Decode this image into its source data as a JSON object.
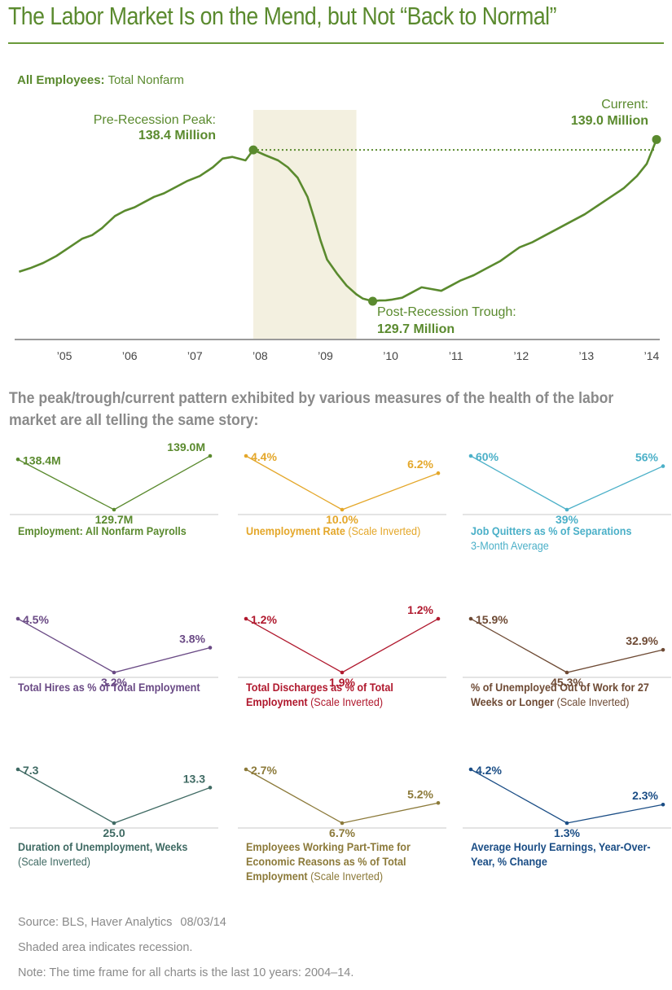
{
  "title": "The Labor Market Is on the Mend, but Not “Back to Normal”",
  "main": {
    "label_bold": "All Employees:",
    "label_rest": "Total Nonfarm",
    "peak_label": "Pre-Recession Peak:",
    "peak_value": "138.4 Million",
    "trough_label": "Post-Recession Trough:",
    "trough_value": "129.7 Million",
    "current_label": "Current:",
    "current_value": "139.0 Million"
  },
  "summary": "The peak/trough/current pattern exhibited by various measures of the health of the labor market are all telling the same story:",
  "colors": {
    "green": "#5a8a2e",
    "orange": "#e4a72a",
    "cyan": "#4bb0c8",
    "purple": "#6a4a85",
    "red": "#b0192e",
    "brown": "#6e4a34",
    "teal": "#3f6a63",
    "olive": "#8c7a3a",
    "navy": "#1a4d85",
    "recession": "#f3f0e0",
    "axis": "#9a9a9a",
    "tick_text": "#444444"
  },
  "chart_data": [
    {
      "type": "line",
      "name": "main",
      "x_ticks": [
        "’05",
        "’06",
        "’07",
        "’08",
        "’09",
        "’10",
        "’11",
        "’12",
        "’13",
        "’14"
      ],
      "x_tick_values": [
        2005,
        2006,
        2007,
        2008,
        2009,
        2010,
        2011,
        2012,
        2013,
        2014
      ],
      "xlim": [
        2004.3,
        2014.1
      ],
      "ylim": [
        127.5,
        140.7
      ],
      "recession": [
        2007.92,
        2009.5
      ],
      "x": [
        2004.33,
        2004.5,
        2004.7,
        2004.9,
        2005.1,
        2005.3,
        2005.45,
        2005.6,
        2005.8,
        2005.95,
        2006.1,
        2006.25,
        2006.4,
        2006.55,
        2006.75,
        2006.9,
        2007.1,
        2007.3,
        2007.45,
        2007.6,
        2007.8,
        2007.92,
        2008.1,
        2008.3,
        2008.45,
        2008.6,
        2008.75,
        2008.85,
        2008.95,
        2009.05,
        2009.2,
        2009.35,
        2009.5,
        2009.6,
        2009.75,
        2009.85,
        2009.95,
        2010.05,
        2010.2,
        2010.35,
        2010.5,
        2010.65,
        2010.8,
        2010.95,
        2011.1,
        2011.3,
        2011.5,
        2011.7,
        2011.85,
        2012.0,
        2012.2,
        2012.4,
        2012.6,
        2012.8,
        2013.0,
        2013.2,
        2013.4,
        2013.6,
        2013.8,
        2013.95,
        2014.1
      ],
      "y": [
        131.4,
        131.6,
        131.9,
        132.3,
        132.8,
        133.3,
        133.5,
        133.9,
        134.6,
        134.9,
        135.1,
        135.4,
        135.7,
        135.9,
        136.3,
        136.6,
        136.9,
        137.4,
        137.9,
        138.0,
        137.8,
        138.4,
        138.1,
        137.8,
        137.4,
        136.8,
        135.7,
        134.5,
        133.2,
        132.1,
        131.3,
        130.6,
        130.1,
        129.85,
        129.7,
        129.74,
        129.75,
        129.8,
        129.9,
        130.2,
        130.5,
        130.4,
        130.3,
        130.6,
        130.9,
        131.2,
        131.6,
        132.0,
        132.4,
        132.8,
        133.1,
        133.5,
        133.9,
        134.3,
        134.7,
        135.2,
        135.7,
        136.2,
        136.9,
        137.6,
        139.0
      ],
      "points": {
        "peak": {
          "x": 2007.92,
          "y": 138.4
        },
        "trough": {
          "x": 2009.75,
          "y": 129.7
        },
        "current": {
          "x": 2014.1,
          "y": 139.0
        }
      }
    },
    {
      "type": "line",
      "name": "mini1",
      "title": "Employment: All Nonfarm Payrolls",
      "title_rest": "",
      "subtitle": "",
      "values": [
        138.4,
        129.7,
        139.0
      ],
      "labels": [
        "138.4M",
        "129.7M",
        "139.0M"
      ],
      "inverted": false,
      "color": "#5a8a2e"
    },
    {
      "type": "line",
      "name": "mini2",
      "title": "Unemployment Rate",
      "title_rest": "(Scale Inverted)",
      "subtitle": "",
      "values": [
        4.4,
        10.0,
        6.2
      ],
      "labels": [
        "4.4%",
        "10.0%",
        "6.2%"
      ],
      "inverted": true,
      "color": "#e4a72a"
    },
    {
      "type": "line",
      "name": "mini3",
      "title": "Job Quitters as % of Separations",
      "title_rest": "",
      "subtitle": "3-Month Average",
      "values": [
        60,
        39,
        56
      ],
      "labels": [
        "60%",
        "39%",
        "56%"
      ],
      "inverted": false,
      "color": "#4bb0c8"
    },
    {
      "type": "line",
      "name": "mini4",
      "title": "Total Hires as % of Total Employment",
      "title_rest": "",
      "subtitle": "",
      "values": [
        4.5,
        3.2,
        3.8
      ],
      "labels": [
        "4.5%",
        "3.2%",
        "3.8%"
      ],
      "inverted": false,
      "color": "#6a4a85"
    },
    {
      "type": "line",
      "name": "mini5",
      "title": "Total Discharges as % of Total Employment",
      "title_rest": "(Scale Inverted)",
      "subtitle": "",
      "values": [
        1.2,
        1.9,
        1.2
      ],
      "labels": [
        "1.2%",
        "1.9%",
        "1.2%"
      ],
      "inverted": true,
      "color": "#b0192e"
    },
    {
      "type": "line",
      "name": "mini6",
      "title": "% of Unemployed Out of Work for 27 Weeks or Longer",
      "title_rest": "(Scale Inverted)",
      "subtitle": "",
      "values": [
        15.9,
        45.3,
        32.9
      ],
      "labels": [
        "15.9%",
        "45.3%",
        "32.9%"
      ],
      "inverted": true,
      "color": "#6e4a34"
    },
    {
      "type": "line",
      "name": "mini7",
      "title": "Duration of Unemployment, Weeks",
      "title_rest": "(Scale Inverted)",
      "subtitle": "",
      "values": [
        7.3,
        25.0,
        13.3
      ],
      "labels": [
        "7.3",
        "25.0",
        "13.3"
      ],
      "inverted": true,
      "color": "#3f6a63"
    },
    {
      "type": "line",
      "name": "mini8",
      "title": "Employees Working Part-Time for Economic Reasons as % of Total Employment",
      "title_rest": "(Scale Inverted)",
      "subtitle": "",
      "values": [
        2.7,
        6.7,
        5.2
      ],
      "labels": [
        "2.7%",
        "6.7%",
        "5.2%"
      ],
      "inverted": true,
      "color": "#8c7a3a"
    },
    {
      "type": "line",
      "name": "mini9",
      "title": "Average Hourly Earnings, Year-Over-Year, % Change",
      "title_rest": "",
      "subtitle": "",
      "values": [
        4.2,
        1.3,
        2.3
      ],
      "labels": [
        "4.2%",
        "1.3%",
        "2.3%"
      ],
      "inverted": false,
      "color": "#1a4d85"
    }
  ],
  "footer": {
    "source": "Source: BLS, Haver Analytics",
    "date": "08/03/14",
    "shaded_note": "Shaded area indicates recession.",
    "note": "Note: The time frame for all charts is the last 10 years: 2004–14."
  }
}
